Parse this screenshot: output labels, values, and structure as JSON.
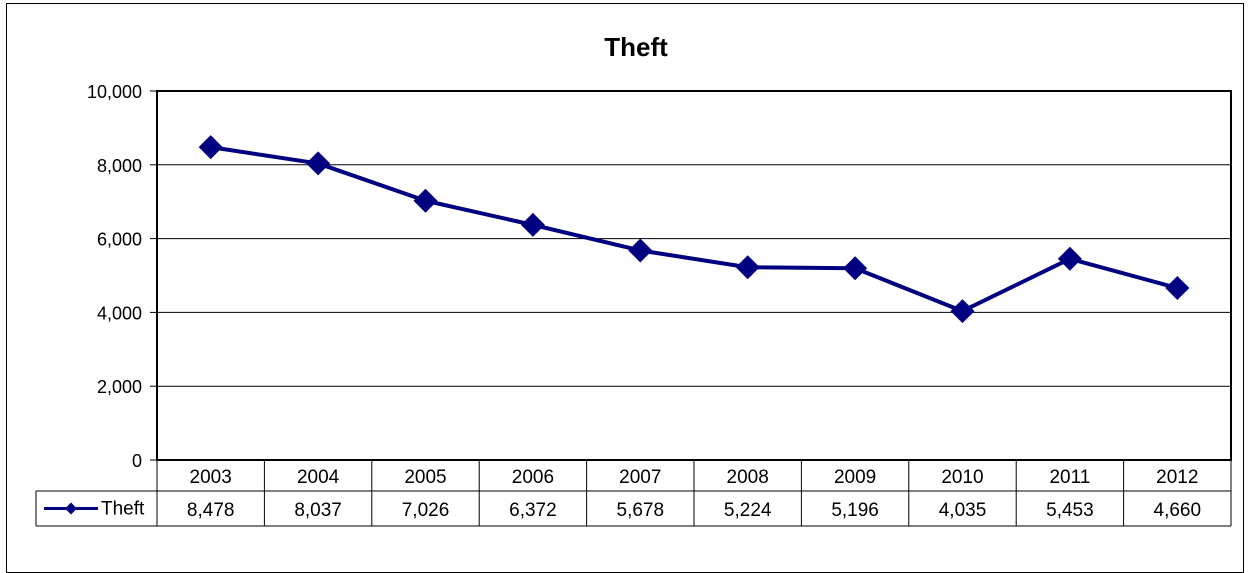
{
  "chart_data": {
    "type": "line",
    "title": "Theft",
    "xlabel": "",
    "ylabel": "",
    "categories": [
      "2003",
      "2004",
      "2005",
      "2006",
      "2007",
      "2008",
      "2009",
      "2010",
      "2011",
      "2012"
    ],
    "series": [
      {
        "name": "Theft",
        "values": [
          8478,
          8037,
          7026,
          6372,
          5678,
          5224,
          5196,
          4035,
          5453,
          4660
        ]
      }
    ],
    "value_labels": [
      "8,478",
      "8,037",
      "7,026",
      "6,372",
      "5,678",
      "5,224",
      "5,196",
      "4,035",
      "5,453",
      "4,660"
    ],
    "ylim": [
      0,
      10000
    ],
    "yticks": [
      0,
      2000,
      4000,
      6000,
      8000,
      10000
    ],
    "ytick_labels": [
      "0",
      "2,000",
      "4,000",
      "6,000",
      "8,000",
      "10,000"
    ],
    "grid": true,
    "legend": "data-table",
    "color": "#000080"
  }
}
